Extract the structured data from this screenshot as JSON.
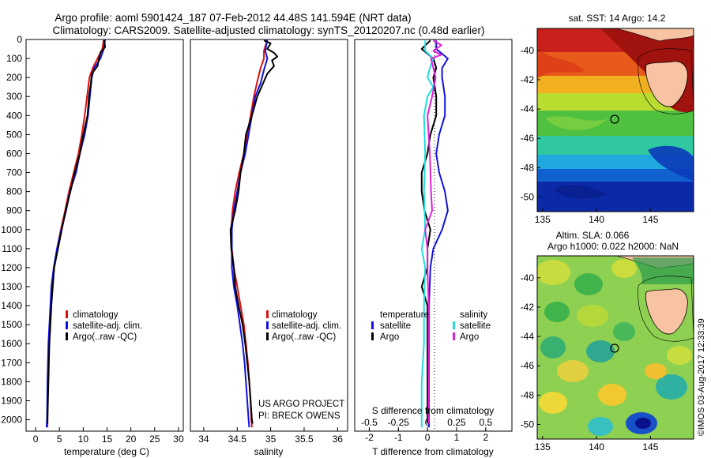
{
  "title_line1": "Argo profile: aoml 5901424_187 07-Feb-2012 44.48S 141.594E (NRT data)",
  "title_line2": "Climatology: CARS2009. Satellite-adjusted climatology: synTS_20120207.nc (0.48d earlier)",
  "colors": {
    "climatology": "#dd1111",
    "satellite": "#1111dd",
    "argo": "#000000",
    "sat_s": "#22dddd",
    "argo_s": "#dd22dd",
    "land": "#f7c3a3"
  },
  "labels": {
    "climatology": "climatology",
    "satellite_adj": "satellite-adj. clim.",
    "argo_raw": "Argo(..raw -QC)",
    "temperature": "temperature",
    "salinity": "salinity",
    "satellite": "satellite",
    "argo": "Argo",
    "project1": "US ARGO PROJECT",
    "project2": "PI: BRECK OWENS",
    "sst_title": "sat. SST: 14 Argo: 14.2",
    "sla_title1": "Altim. SLA: 0.066",
    "sla_title2": "Argo h1000: 0.022 h2000: NaN",
    "watermark": "©IMOS 03-Aug-2017 12:33:39",
    "sdiff": "S difference from climatology"
  },
  "chart_data": [
    {
      "type": "line",
      "xlabel": "temperature (deg C)",
      "ylabel": "",
      "xlim": [
        -2,
        31
      ],
      "ylim": [
        2060,
        0
      ],
      "xticks": [
        0,
        5,
        10,
        15,
        20,
        25,
        30
      ],
      "yticks": [
        0,
        100,
        200,
        300,
        400,
        500,
        600,
        700,
        800,
        900,
        1000,
        1100,
        1200,
        1300,
        1400,
        1500,
        1600,
        1700,
        1800,
        1900,
        2000
      ],
      "legend": "bottom-left",
      "series": [
        {
          "name": "climatology",
          "color": "#dd1111",
          "points": [
            [
              14.3,
              0
            ],
            [
              14,
              50
            ],
            [
              13,
              100
            ],
            [
              12,
              150
            ],
            [
              11.3,
              200
            ],
            [
              10.8,
              300
            ],
            [
              10.3,
              400
            ],
            [
              9.7,
              500
            ],
            [
              9,
              600
            ],
            [
              8,
              700
            ],
            [
              7,
              800
            ],
            [
              6.2,
              900
            ],
            [
              5.3,
              1000
            ],
            [
              4.5,
              1100
            ],
            [
              3.9,
              1200
            ],
            [
              3.5,
              1300
            ],
            [
              3.2,
              1400
            ],
            [
              3,
              1500
            ],
            [
              2.8,
              1600
            ],
            [
              2.6,
              1800
            ],
            [
              2.5,
              2000
            ],
            [
              2.5,
              2040
            ]
          ]
        },
        {
          "name": "satellite-adj. clim.",
          "color": "#1111dd",
          "points": [
            [
              14.6,
              0
            ],
            [
              14.3,
              50
            ],
            [
              13.6,
              100
            ],
            [
              12.3,
              150
            ],
            [
              11.8,
              200
            ],
            [
              11.4,
              300
            ],
            [
              11,
              400
            ],
            [
              10.3,
              500
            ],
            [
              9.3,
              600
            ],
            [
              8.5,
              700
            ],
            [
              7.2,
              800
            ],
            [
              6.4,
              900
            ],
            [
              5.4,
              1000
            ],
            [
              4.5,
              1100
            ],
            [
              3.8,
              1200
            ],
            [
              3.3,
              1300
            ],
            [
              3.1,
              1400
            ],
            [
              2.9,
              1500
            ],
            [
              2.7,
              1600
            ],
            [
              2.5,
              1800
            ],
            [
              2.4,
              2000
            ],
            [
              2.3,
              2040
            ]
          ]
        },
        {
          "name": "Argo(..raw -QC)",
          "color": "#000000",
          "points": [
            [
              14.4,
              5
            ],
            [
              14.6,
              40
            ],
            [
              13.6,
              70
            ],
            [
              13.3,
              100
            ],
            [
              13,
              140
            ],
            [
              11.8,
              180
            ],
            [
              11.6,
              230
            ],
            [
              11.2,
              300
            ],
            [
              10.9,
              400
            ],
            [
              10,
              500
            ],
            [
              9.3,
              600
            ],
            [
              8.2,
              700
            ],
            [
              7.3,
              800
            ],
            [
              6.3,
              900
            ],
            [
              5.5,
              1000
            ],
            [
              4.7,
              1100
            ],
            [
              3.9,
              1200
            ],
            [
              3.6,
              1300
            ],
            [
              3.3,
              1400
            ],
            [
              3.1,
              1500
            ],
            [
              2.9,
              1600
            ],
            [
              2.8,
              1700
            ],
            [
              2.6,
              1900
            ],
            [
              2.5,
              2000
            ],
            [
              2.5,
              2020
            ]
          ]
        }
      ]
    },
    {
      "type": "line",
      "xlabel": "salinity",
      "xlim": [
        33.8,
        36.15
      ],
      "ylim": [
        2060,
        0
      ],
      "xticks": [
        34,
        34.5,
        35,
        35.5,
        36
      ],
      "xticklabels": [
        "34",
        "34.5",
        "35",
        "35.5",
        "36"
      ],
      "legend": "bottom-left",
      "series": [
        {
          "name": "climatology",
          "color": "#dd1111",
          "points": [
            [
              34.95,
              0
            ],
            [
              34.9,
              60
            ],
            [
              34.9,
              100
            ],
            [
              34.85,
              150
            ],
            [
              34.8,
              220
            ],
            [
              34.75,
              300
            ],
            [
              34.7,
              400
            ],
            [
              34.65,
              500
            ],
            [
              34.6,
              600
            ],
            [
              34.53,
              700
            ],
            [
              34.47,
              800
            ],
            [
              34.43,
              900
            ],
            [
              34.41,
              1000
            ],
            [
              34.42,
              1100
            ],
            [
              34.45,
              1200
            ],
            [
              34.5,
              1300
            ],
            [
              34.55,
              1400
            ],
            [
              34.6,
              1500
            ],
            [
              34.63,
              1600
            ],
            [
              34.66,
              1700
            ],
            [
              34.68,
              1800
            ],
            [
              34.7,
              1900
            ],
            [
              34.71,
              2000
            ],
            [
              34.72,
              2040
            ]
          ]
        },
        {
          "name": "satellite-adj. clim.",
          "color": "#1111dd",
          "points": [
            [
              34.95,
              0
            ],
            [
              34.92,
              60
            ],
            [
              34.95,
              100
            ],
            [
              34.9,
              160
            ],
            [
              34.85,
              230
            ],
            [
              34.77,
              300
            ],
            [
              34.72,
              400
            ],
            [
              34.67,
              500
            ],
            [
              34.62,
              600
            ],
            [
              34.55,
              700
            ],
            [
              34.5,
              800
            ],
            [
              34.45,
              900
            ],
            [
              34.42,
              1000
            ],
            [
              34.42,
              1100
            ],
            [
              34.42,
              1200
            ],
            [
              34.45,
              1300
            ],
            [
              34.5,
              1400
            ],
            [
              34.54,
              1500
            ],
            [
              34.58,
              1600
            ],
            [
              34.61,
              1700
            ],
            [
              34.63,
              1800
            ],
            [
              34.65,
              1900
            ],
            [
              34.67,
              2000
            ],
            [
              34.68,
              2040
            ]
          ]
        },
        {
          "name": "Argo(..raw -QC)",
          "color": "#000000",
          "points": [
            [
              34.9,
              5
            ],
            [
              35,
              20
            ],
            [
              34.95,
              50
            ],
            [
              35.05,
              70
            ],
            [
              35.1,
              90
            ],
            [
              35.02,
              110
            ],
            [
              35.05,
              140
            ],
            [
              34.95,
              180
            ],
            [
              34.9,
              220
            ],
            [
              34.8,
              300
            ],
            [
              34.72,
              400
            ],
            [
              34.63,
              500
            ],
            [
              34.6,
              600
            ],
            [
              34.55,
              700
            ],
            [
              34.52,
              800
            ],
            [
              34.47,
              900
            ],
            [
              34.4,
              1000
            ],
            [
              34.41,
              1100
            ],
            [
              34.45,
              1200
            ],
            [
              34.47,
              1300
            ],
            [
              34.52,
              1400
            ],
            [
              34.58,
              1500
            ],
            [
              34.62,
              1600
            ],
            [
              34.65,
              1700
            ],
            [
              34.68,
              1800
            ],
            [
              34.7,
              1900
            ],
            [
              34.72,
              2000
            ],
            [
              34.73,
              2020
            ]
          ]
        }
      ]
    },
    {
      "type": "line",
      "xlabel": "T difference from climatology",
      "xlabel_top": "S difference from climatology",
      "xlim": [
        -2.5,
        2.9
      ],
      "ylim": [
        2060,
        0
      ],
      "xticks": [
        -2,
        -1,
        0,
        1,
        2
      ],
      "s_xticks": [
        -0.5,
        -0.25,
        0,
        0.25,
        0.5
      ],
      "s_xticklabels": [
        "-0.5",
        "-0.25",
        "0",
        "0.25",
        "0.5"
      ],
      "s_scale": 4,
      "legend": "bottom",
      "series": [
        {
          "name": "temperature satellite",
          "color": "#1111dd",
          "points": [
            [
              0.3,
              5
            ],
            [
              0.3,
              50
            ],
            [
              0.7,
              100
            ],
            [
              0.5,
              150
            ],
            [
              0.5,
              200
            ],
            [
              0.6,
              300
            ],
            [
              0.6,
              400
            ],
            [
              0.4,
              500
            ],
            [
              0.3,
              600
            ],
            [
              0.4,
              700
            ],
            [
              0.6,
              800
            ],
            [
              0.7,
              900
            ],
            [
              0.5,
              1000
            ],
            [
              0.2,
              1100
            ],
            [
              0.1,
              1200
            ],
            [
              0.05,
              1400
            ],
            [
              0.05,
              1600
            ],
            [
              0.05,
              1800
            ],
            [
              0.05,
              2000
            ],
            [
              0.05,
              2040
            ]
          ]
        },
        {
          "name": "temperature Argo",
          "color": "#000000",
          "points": [
            [
              0.1,
              5
            ],
            [
              -0.2,
              50
            ],
            [
              0.2,
              100
            ],
            [
              0.3,
              150
            ],
            [
              0.2,
              200
            ],
            [
              0.3,
              300
            ],
            [
              0.3,
              400
            ],
            [
              0.1,
              500
            ],
            [
              0,
              600
            ],
            [
              -0.2,
              700
            ],
            [
              -0.2,
              800
            ],
            [
              -0.1,
              900
            ],
            [
              0.1,
              1000
            ],
            [
              0,
              1100
            ],
            [
              0,
              1200
            ],
            [
              -0.2,
              1300
            ],
            [
              0,
              1400
            ],
            [
              0,
              1600
            ],
            [
              0,
              1800
            ],
            [
              0,
              2000
            ],
            [
              0,
              2020
            ]
          ]
        },
        {
          "name": "salinity satellite",
          "color": "#22dddd",
          "points": [
            [
              -0.02,
              5
            ],
            [
              -0.02,
              60
            ],
            [
              0.05,
              100
            ],
            [
              0.02,
              150
            ],
            [
              0.0,
              200
            ],
            [
              0.05,
              250
            ],
            [
              0.0,
              300
            ],
            [
              -0.03,
              400
            ],
            [
              -0.02,
              600
            ],
            [
              -0.03,
              800
            ],
            [
              -0.02,
              1000
            ],
            [
              -0.05,
              1100
            ],
            [
              -0.02,
              1200
            ],
            [
              -0.03,
              1400
            ],
            [
              -0.03,
              1600
            ],
            [
              -0.05,
              1800
            ],
            [
              -0.05,
              2000
            ],
            [
              -0.05,
              2040
            ]
          ]
        },
        {
          "name": "salinity Argo",
          "color": "#dd22dd",
          "points": [
            [
              0.05,
              5
            ],
            [
              0.12,
              30
            ],
            [
              0.05,
              60
            ],
            [
              0.12,
              80
            ],
            [
              0.03,
              100
            ],
            [
              0.05,
              150
            ],
            [
              0.07,
              200
            ],
            [
              0.04,
              300
            ],
            [
              0.0,
              400
            ],
            [
              0.02,
              600
            ],
            [
              0.03,
              800
            ],
            [
              0.04,
              900
            ],
            [
              -0.02,
              1000
            ],
            [
              0.0,
              1100
            ],
            [
              0.0,
              1200
            ],
            [
              0.01,
              1400
            ],
            [
              0.01,
              1600
            ],
            [
              0.01,
              1800
            ],
            [
              0.01,
              2000
            ],
            [
              0.01,
              2020
            ]
          ]
        }
      ]
    },
    {
      "type": "heatmap",
      "title": "sat. SST: 14 Argo: 14.2",
      "xlim": [
        134.5,
        149
      ],
      "ylim": [
        -51,
        -38.5
      ],
      "xticks": [
        135,
        140,
        145
      ],
      "yticks": [
        -50,
        -48,
        -46,
        -44,
        -42,
        -40
      ],
      "argo_position": [
        141.594,
        -44.48
      ]
    },
    {
      "type": "heatmap",
      "title": "Altim. SLA: 0.066",
      "subtitle": "Argo h1000: 0.022 h2000: NaN",
      "xlim": [
        134.5,
        149
      ],
      "ylim": [
        -51,
        -38.5
      ],
      "xticks": [
        135,
        140,
        145
      ],
      "yticks": [
        -50,
        -48,
        -46,
        -44,
        -42,
        -40
      ],
      "argo_position": [
        141.594,
        -44.48
      ]
    }
  ]
}
